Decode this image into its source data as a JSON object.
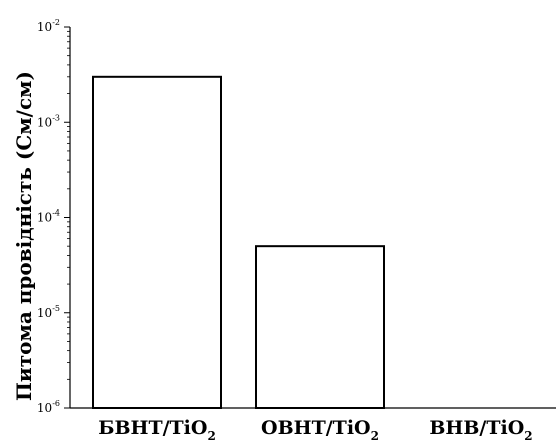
{
  "chart_data": {
    "type": "bar",
    "ylabel": "Питома провідність (См/см)",
    "yscale": "log",
    "ylim": [
      1e-06,
      0.01
    ],
    "yticks": [
      {
        "base": "10",
        "exp": "-6"
      },
      {
        "base": "10",
        "exp": "-5"
      },
      {
        "base": "10",
        "exp": "-4"
      },
      {
        "base": "10",
        "exp": "-3"
      },
      {
        "base": "10",
        "exp": "-2"
      }
    ],
    "categories": [
      {
        "main": "БВНТ/TiO",
        "sub": "2"
      },
      {
        "main": "ОВНТ/TiO",
        "sub": "2"
      },
      {
        "main": "ВНВ/TiO",
        "sub": "2"
      }
    ],
    "values": [
      0.003,
      5e-05,
      8e-07
    ],
    "grid": false,
    "legend": "none",
    "colors": {
      "stripe_dark": "#5a5a5a",
      "stripe_light": "#e2e2e2",
      "bar_fill": "#ffffff",
      "outline": "#000000"
    }
  }
}
